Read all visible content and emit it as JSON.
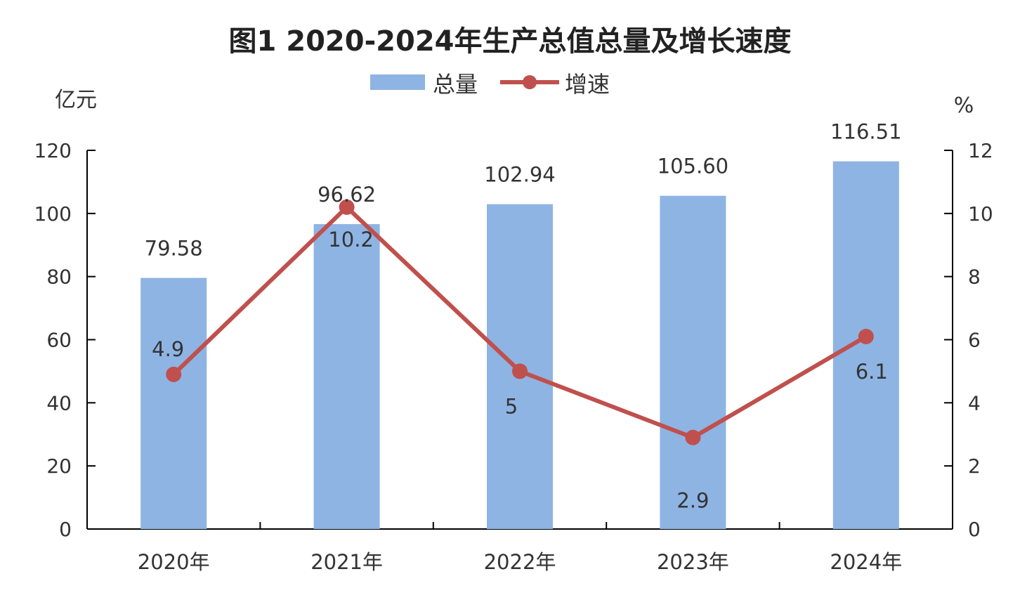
{
  "chart_data": {
    "type": "bar",
    "title": "图1  2020-2024年生产总值总量及增长速度",
    "categories": [
      "2020年",
      "2021年",
      "2022年",
      "2023年",
      "2024年"
    ],
    "series": [
      {
        "name": "总量",
        "type": "bar",
        "axis": "left",
        "color": "#8eb4e3",
        "values": [
          79.58,
          96.62,
          102.94,
          105.6,
          116.51
        ],
        "labels": [
          "79.58",
          "96.62",
          "102.94",
          "105.60",
          "116.51"
        ]
      },
      {
        "name": "增速",
        "type": "line",
        "axis": "right",
        "color": "#c0504d",
        "values": [
          4.9,
          10.2,
          5,
          2.9,
          6.1
        ],
        "labels": [
          "4.9",
          "10.2",
          "5",
          "2.9",
          "6.1"
        ]
      }
    ],
    "ylabel_left": "亿元",
    "ylabel_right": "%",
    "ylim_left": [
      0,
      120
    ],
    "ylim_right": [
      0,
      12
    ],
    "yticks_left": [
      "0",
      "20",
      "40",
      "60",
      "80",
      "100",
      "120"
    ],
    "yticks_right": [
      "0",
      "2",
      "4",
      "6",
      "8",
      "10",
      "12"
    ],
    "legend_position": "top-center",
    "grid": false
  }
}
